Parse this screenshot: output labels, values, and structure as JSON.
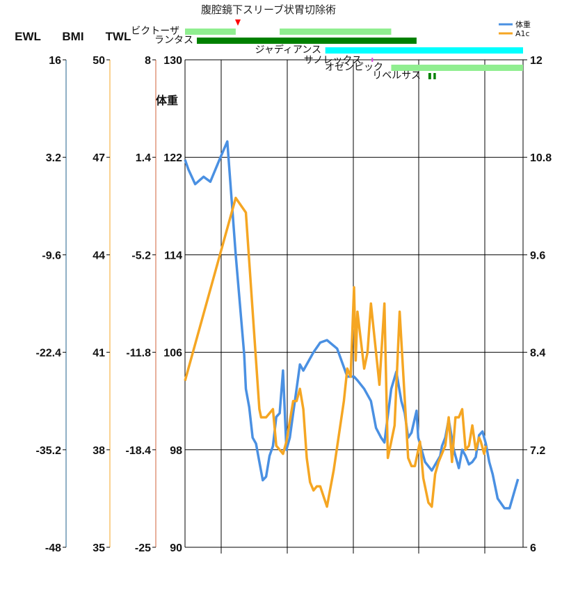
{
  "chart_data": {
    "type": "line",
    "annotation": "腹腔鏡下スリーブ状胃切除術",
    "unit_label": "体重",
    "left_axes": [
      {
        "name": "EWL",
        "ticks": [
          "16",
          "3.2",
          "-9.6",
          "-22.4",
          "-35.2",
          "-48"
        ],
        "color": "#1f5f8b"
      },
      {
        "name": "BMI",
        "ticks": [
          "50",
          "47",
          "44",
          "41",
          "38",
          "35"
        ],
        "color": "#f5a623"
      },
      {
        "name": "TWL",
        "ticks": [
          "8",
          "1.4",
          "-5.2",
          "-11.8",
          "-18.4",
          "-25"
        ],
        "color": "#d0603a"
      }
    ],
    "y_left": {
      "ticks": [
        "130",
        "122",
        "114",
        "106",
        "98",
        "90"
      ],
      "ylim": [
        90,
        130
      ]
    },
    "y_right": {
      "ticks": [
        "12",
        "10.8",
        "9.6",
        "8.4",
        "7.2",
        "6"
      ],
      "ylim": [
        6,
        12
      ]
    },
    "legend": [
      {
        "label": "体重",
        "color": "#4a90e2"
      },
      {
        "label": "A1c",
        "color": "#f5a623"
      }
    ],
    "medications": [
      {
        "name": "ビクトーザ",
        "color": "#90ee90",
        "segments": [
          [
            0,
            0.15
          ],
          [
            0.28,
            0.61
          ]
        ]
      },
      {
        "name": "ランタス",
        "color": "#008000",
        "segments": [
          [
            0.035,
            0.685
          ]
        ]
      },
      {
        "name": "ジャディアンス",
        "color": "#00ffff",
        "segments": [
          [
            0.415,
            1.0
          ]
        ]
      },
      {
        "name": "サノレックス",
        "color": "#e040e0",
        "segments": [
          [
            0.552,
            0.556
          ]
        ]
      },
      {
        "name": "オゼンピック",
        "color": "#90ee90",
        "segments": [
          [
            0.61,
            1.0
          ]
        ]
      },
      {
        "name": "リベルサス",
        "color": "#008000",
        "segments": [
          [
            0.72,
            0.728
          ],
          [
            0.735,
            0.742
          ]
        ]
      }
    ],
    "series": [
      {
        "name": "体重",
        "axis": "left",
        "x": [
          0,
          0.01,
          0.03,
          0.055,
          0.075,
          0.105,
          0.125,
          0.15,
          0.175,
          0.18,
          0.19,
          0.2,
          0.21,
          0.22,
          0.23,
          0.24,
          0.25,
          0.26,
          0.27,
          0.28,
          0.29,
          0.3,
          0.31,
          0.32,
          0.33,
          0.34,
          0.35,
          0.38,
          0.4,
          0.42,
          0.45,
          0.48,
          0.5,
          0.51,
          0.53,
          0.55,
          0.565,
          0.58,
          0.59,
          0.61,
          0.625,
          0.64,
          0.65,
          0.66,
          0.67,
          0.685,
          0.69,
          0.7,
          0.71,
          0.73,
          0.755,
          0.76,
          0.77,
          0.78,
          0.795,
          0.81,
          0.82,
          0.83,
          0.84,
          0.85,
          0.86,
          0.87,
          0.88,
          0.89,
          0.9,
          0.91,
          0.925,
          0.945,
          0.96,
          0.985
        ],
        "values": [
          121.8,
          121,
          119.8,
          120.4,
          120,
          122,
          123.3,
          114,
          105.8,
          103,
          101.5,
          99,
          98.5,
          97,
          95.5,
          95.8,
          97.5,
          98.3,
          100.7,
          101,
          104.5,
          98,
          99,
          101,
          103,
          105,
          104.5,
          106,
          106.8,
          107,
          106.3,
          104,
          104,
          103.7,
          103,
          102,
          99.8,
          99,
          98.6,
          103,
          104.4,
          102,
          101,
          99,
          99.4,
          101.2,
          99,
          98,
          97,
          96.3,
          97.5,
          98.3,
          99,
          100.5,
          98,
          96.5,
          98,
          97.5,
          96.8,
          97,
          97.4,
          99.2,
          99.5,
          98.5,
          97,
          96,
          94,
          93.2,
          93.2,
          95.6
        ],
        "color": "#4a90e2"
      },
      {
        "name": "A1c",
        "axis": "right",
        "x": [
          0,
          0.15,
          0.18,
          0.22,
          0.225,
          0.24,
          0.26,
          0.27,
          0.28,
          0.29,
          0.3,
          0.32,
          0.33,
          0.34,
          0.35,
          0.36,
          0.37,
          0.38,
          0.39,
          0.4,
          0.42,
          0.44,
          0.47,
          0.48,
          0.49,
          0.5,
          0.505,
          0.51,
          0.53,
          0.54,
          0.55,
          0.575,
          0.59,
          0.6,
          0.61,
          0.62,
          0.635,
          0.66,
          0.67,
          0.68,
          0.695,
          0.705,
          0.72,
          0.73,
          0.74,
          0.75,
          0.77,
          0.78,
          0.79,
          0.8,
          0.81,
          0.82,
          0.83,
          0.84,
          0.85,
          0.86,
          0.87,
          0.875,
          0.885,
          0.89
        ],
        "values": [
          8.05,
          10.3,
          10.12,
          7.7,
          7.6,
          7.6,
          7.7,
          7.25,
          7.2,
          7.15,
          7.3,
          7.8,
          7.8,
          7.95,
          7.7,
          7.1,
          6.8,
          6.7,
          6.75,
          6.75,
          6.5,
          6.95,
          7.8,
          8.2,
          8.1,
          9.2,
          8.3,
          8.9,
          8.2,
          8.4,
          9,
          8,
          9,
          7.1,
          7.3,
          7.5,
          8.9,
          7.1,
          7,
          7,
          7.3,
          6.85,
          6.55,
          6.5,
          6.9,
          7.05,
          7.25,
          7.6,
          7.05,
          7.6,
          7.6,
          7.7,
          7.2,
          7.25,
          7.5,
          7.2,
          7.35,
          7.3,
          7.15,
          7.25
        ],
        "color": "#f5a623"
      }
    ]
  }
}
